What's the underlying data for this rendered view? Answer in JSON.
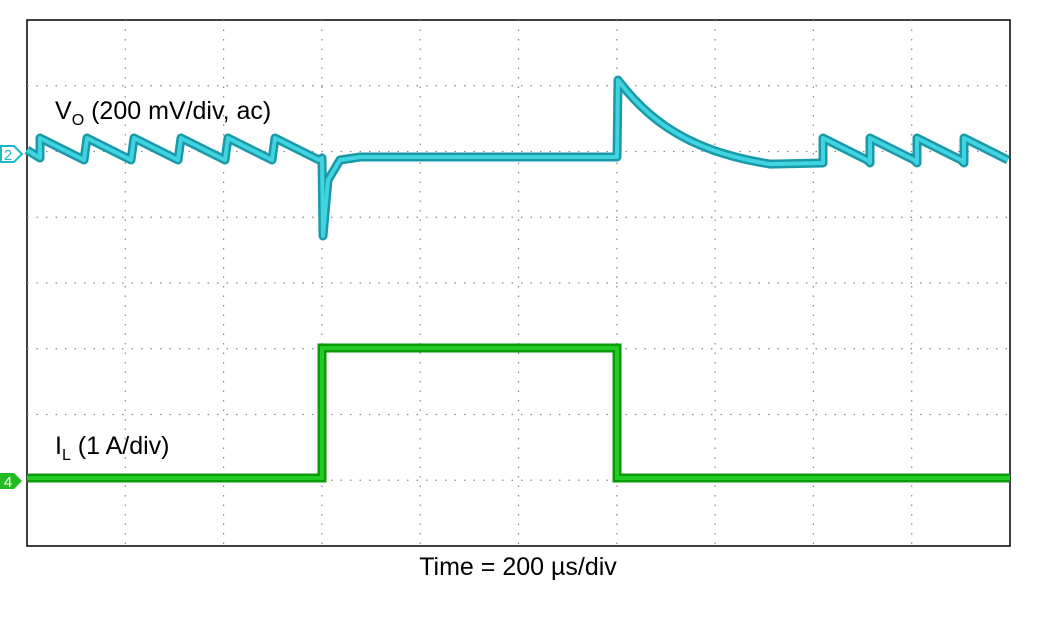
{
  "traces": [
    {
      "channel": "2",
      "label": {
        "main": "V",
        "sub": "O",
        "rest": " (200 mV/div, ac)"
      }
    },
    {
      "channel": "4",
      "label": {
        "main": "I",
        "sub": "L",
        "rest": " (1 A/div)"
      }
    }
  ],
  "x_label": "Time = 200 µs/div"
}
